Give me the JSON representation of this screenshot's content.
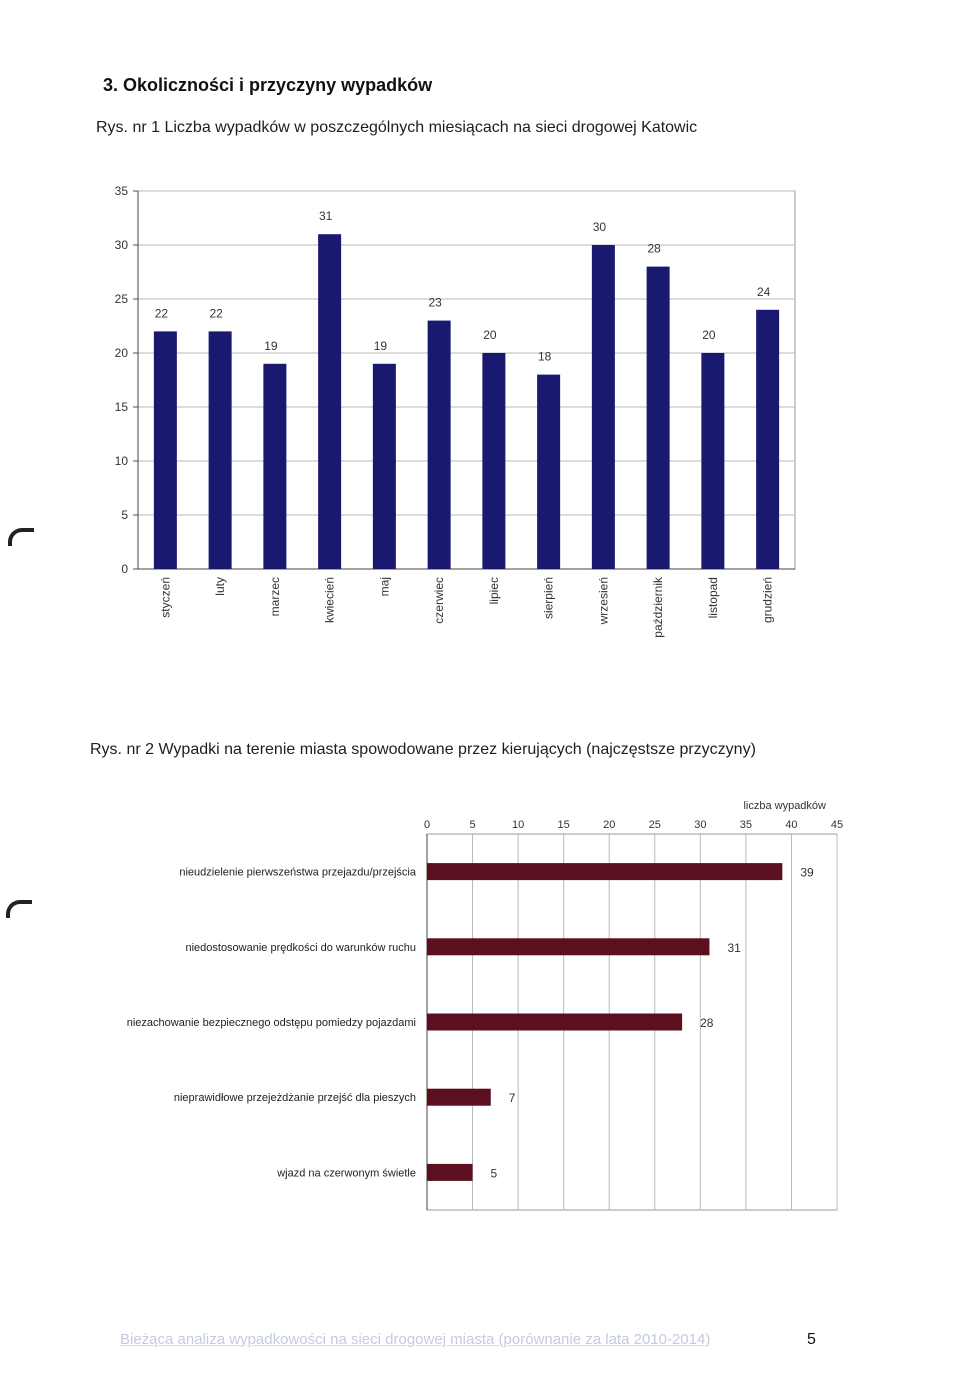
{
  "heading": "3. Okoliczności i przyczyny wypadków",
  "figure1": {
    "caption": "Rys. nr 1  Liczba wypadków w poszczególnych miesiącach na sieci drogowej Katowic"
  },
  "figure2": {
    "caption": "Rys. nr 2  Wypadki na terenie miasta spowodowane przez  kierujących (najczęstsze przyczyny)"
  },
  "chart_data": [
    {
      "type": "bar",
      "title": "",
      "categories": [
        "styczeń",
        "luty",
        "marzec",
        "kwiecień",
        "maj",
        "czerwiec",
        "lipiec",
        "sierpień",
        "wrzesień",
        "październik",
        "listopad",
        "grudzień"
      ],
      "values": [
        22,
        22,
        19,
        31,
        19,
        23,
        20,
        18,
        30,
        28,
        20,
        24
      ],
      "ylim": [
        0,
        35
      ],
      "yticks": [
        0,
        5,
        10,
        15,
        20,
        25,
        30,
        35
      ],
      "grid": true,
      "bar_color": "#191970"
    },
    {
      "type": "bar",
      "orientation": "horizontal",
      "xlabel": "liczba wypadków",
      "categories": [
        "nieudzielenie pierwszeństwa przejazdu/przejścia",
        "niedostosowanie prędkości do warunków ruchu",
        "niezachowanie bezpiecznego odstępu pomiedzy pojazdami",
        "nieprawidłowe przejeżdżanie przejść dla pieszych",
        "wjazd na czerwonym świetle"
      ],
      "values": [
        39,
        31,
        28,
        7,
        5
      ],
      "xlim": [
        0,
        45
      ],
      "xticks": [
        0,
        5,
        10,
        15,
        20,
        25,
        30,
        35,
        40,
        45
      ],
      "grid": true,
      "bar_color": "#5c0f1f"
    }
  ],
  "footer": {
    "text": "Bieżąca analiza wypadkowości na sieci drogowej miasta (porównanie za lata 2010-2014)",
    "page_number": "5"
  }
}
